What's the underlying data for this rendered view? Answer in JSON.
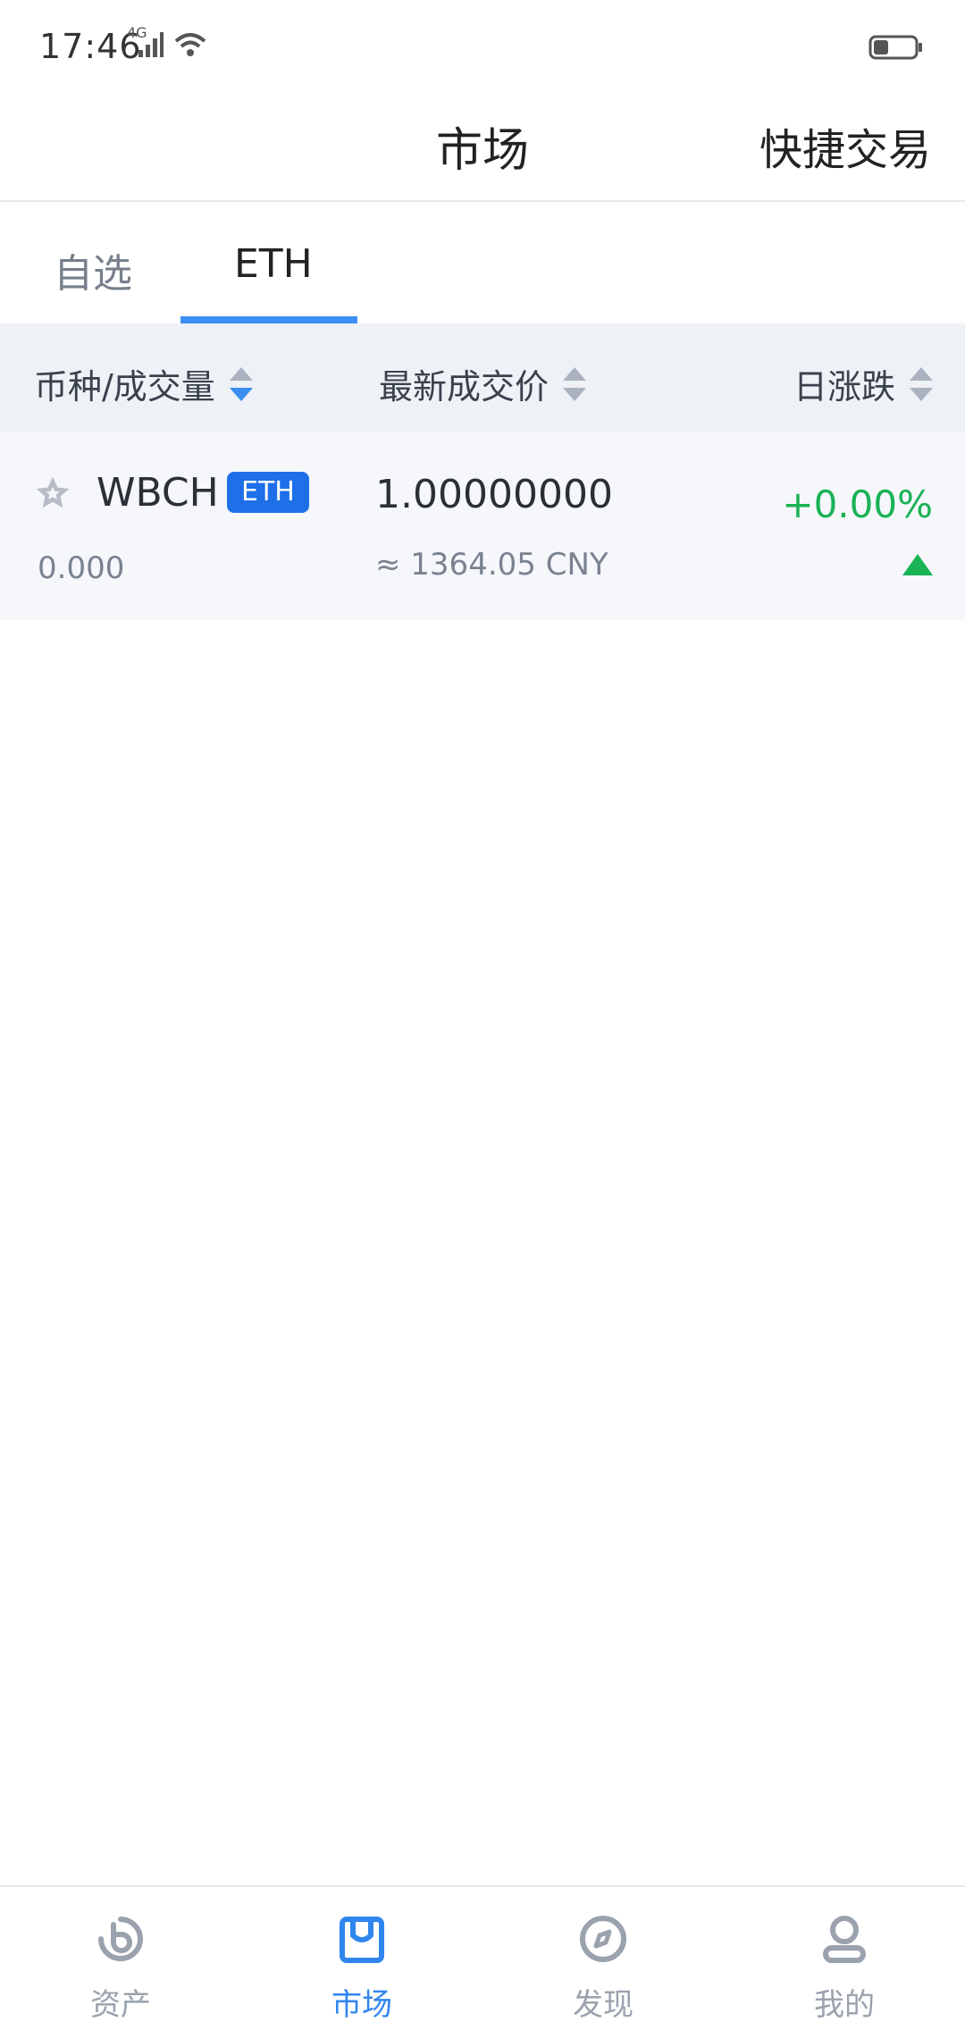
{
  "status_bar": {
    "time": "17:46",
    "network": "4G"
  },
  "header": {
    "title": "市场",
    "action": "快捷交易"
  },
  "tabs": [
    {
      "label": "自选",
      "active": false
    },
    {
      "label": "ETH",
      "active": true
    }
  ],
  "table_header": {
    "col1": "币种/成交量",
    "col2": "最新成交价",
    "col3": "日涨跌"
  },
  "rows": [
    {
      "name": "WBCH",
      "tag": "ETH",
      "volume": "0.000",
      "price": "1.00000000",
      "price_cny": "≈ 1364.05 CNY",
      "change": "+0.00%"
    }
  ],
  "bottom_nav": [
    {
      "label": "资产",
      "icon": "assets-icon",
      "active": false
    },
    {
      "label": "市场",
      "icon": "market-icon",
      "active": true
    },
    {
      "label": "发现",
      "icon": "compass-icon",
      "active": false
    },
    {
      "label": "我的",
      "icon": "profile-icon",
      "active": false
    }
  ],
  "colors": {
    "accent": "#3b8ff2",
    "positive": "#19b255",
    "tag_bg": "#1e6fe8",
    "nav_active": "#2f86ee",
    "nav_inactive": "#9aa2ae"
  }
}
